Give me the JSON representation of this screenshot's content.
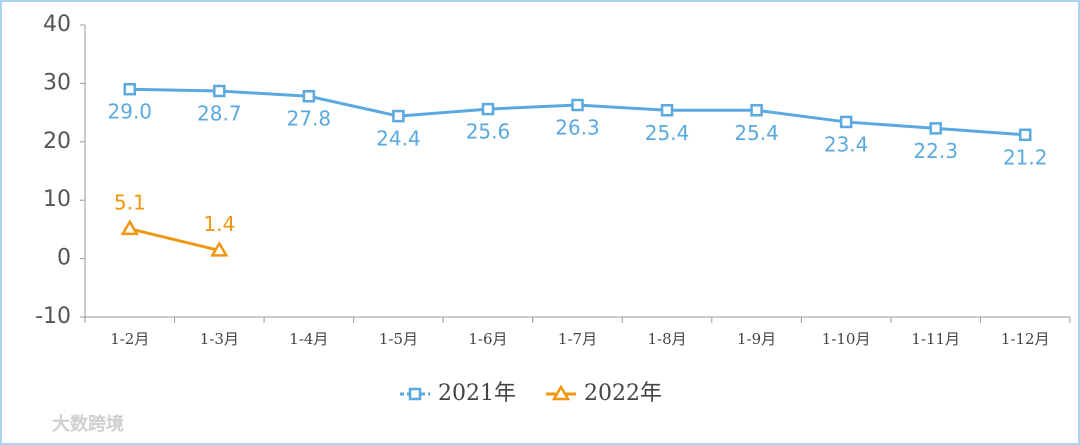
{
  "chart_data": {
    "type": "line",
    "categories": [
      "1-2月",
      "1-3月",
      "1-4月",
      "1-5月",
      "1-6月",
      "1-7月",
      "1-8月",
      "1-9月",
      "1-10月",
      "1-11月",
      "1-12月"
    ],
    "series": [
      {
        "name": "2021年",
        "color": "#5aa9e0",
        "marker": "square",
        "label_position": "below",
        "values": [
          29.0,
          28.7,
          27.8,
          24.4,
          25.6,
          26.3,
          25.4,
          25.4,
          23.4,
          22.3,
          21.2
        ],
        "value_labels": [
          "29.0",
          "28.7",
          "27.8",
          "24.4",
          "25.6",
          "26.3",
          "25.4",
          "25.4",
          "23.4",
          "22.3",
          "21.2"
        ]
      },
      {
        "name": "2022年",
        "color": "#f0960f",
        "marker": "triangle",
        "label_position": "above",
        "values": [
          5.1,
          1.4,
          null,
          null,
          null,
          null,
          null,
          null,
          null,
          null,
          null
        ]
      }
    ],
    "ylim": [
      -10,
      40
    ],
    "yticks": [
      -10,
      0,
      10,
      20,
      30,
      40
    ],
    "grid": false,
    "legend": "bottom",
    "watermark": "大数跨境"
  }
}
